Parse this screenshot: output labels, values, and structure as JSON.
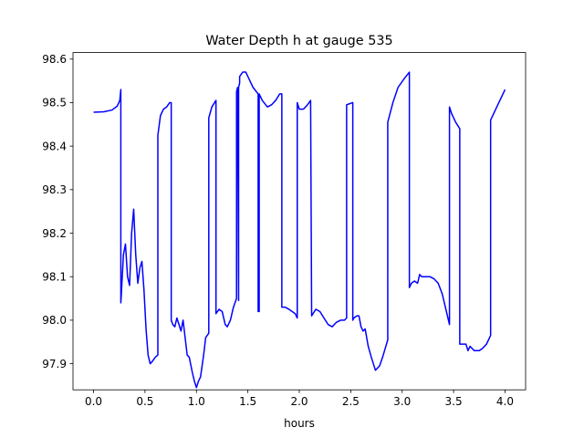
{
  "chart_data": {
    "type": "line",
    "title": "Water Depth h at gauge 535",
    "xlabel": "hours",
    "ylabel": "",
    "xlim": [
      -0.2,
      4.2
    ],
    "ylim": [
      97.84,
      98.615
    ],
    "x_ticks": [
      0.0,
      0.5,
      1.0,
      1.5,
      2.0,
      2.5,
      3.0,
      3.5,
      4.0
    ],
    "x_tick_labels": [
      "0.0",
      "0.5",
      "1.0",
      "1.5",
      "2.0",
      "2.5",
      "3.0",
      "3.5",
      "4.0"
    ],
    "y_ticks": [
      97.9,
      98.0,
      98.1,
      98.2,
      98.3,
      98.4,
      98.5,
      98.6
    ],
    "y_tick_labels": [
      "97.9",
      "98.0",
      "98.1",
      "98.2",
      "98.3",
      "98.4",
      "98.5",
      "98.6"
    ],
    "grid": false,
    "series": [
      {
        "color": "#0000ff",
        "x": [
          0.0,
          0.1,
          0.18,
          0.23,
          0.255,
          0.265,
          0.265,
          0.27,
          0.29,
          0.31,
          0.33,
          0.35,
          0.37,
          0.39,
          0.41,
          0.43,
          0.45,
          0.47,
          0.49,
          0.51,
          0.53,
          0.55,
          0.57,
          0.6,
          0.625,
          0.625,
          0.65,
          0.68,
          0.71,
          0.74,
          0.755,
          0.755,
          0.77,
          0.79,
          0.81,
          0.83,
          0.85,
          0.87,
          0.89,
          0.91,
          0.93,
          0.96,
          0.98,
          1.0,
          1.02,
          1.04,
          1.07,
          1.09,
          1.12,
          1.12,
          1.15,
          1.19,
          1.19,
          1.22,
          1.25,
          1.28,
          1.3,
          1.33,
          1.36,
          1.39,
          1.39,
          1.4,
          1.41,
          1.41,
          1.42,
          1.42,
          1.45,
          1.48,
          1.51,
          1.55,
          1.6,
          1.6,
          1.61,
          1.61,
          1.64,
          1.69,
          1.73,
          1.77,
          1.81,
          1.83,
          1.83,
          1.86,
          1.9,
          1.93,
          1.96,
          1.98,
          1.98,
          2.0,
          2.04,
          2.08,
          2.11,
          2.11,
          2.12,
          2.16,
          2.2,
          2.24,
          2.28,
          2.32,
          2.36,
          2.4,
          2.44,
          2.46,
          2.46,
          2.52,
          2.52,
          2.53,
          2.56,
          2.58,
          2.6,
          2.62,
          2.64,
          2.67,
          2.7,
          2.74,
          2.78,
          2.81,
          2.86,
          2.86,
          2.91,
          2.96,
          3.02,
          3.07,
          3.07,
          3.09,
          3.12,
          3.15,
          3.17,
          3.19,
          3.23,
          3.27,
          3.31,
          3.35,
          3.39,
          3.43,
          3.46,
          3.46,
          3.48,
          3.52,
          3.56,
          3.56,
          3.62,
          3.64,
          3.66,
          3.68,
          3.7,
          3.72,
          3.75,
          3.78,
          3.82,
          3.86,
          3.86,
          3.92,
          3.97,
          4.0
        ],
        "y": [
          98.478,
          98.479,
          98.483,
          98.492,
          98.505,
          98.53,
          98.04,
          98.06,
          98.15,
          98.175,
          98.1,
          98.08,
          98.2,
          98.255,
          98.15,
          98.085,
          98.12,
          98.135,
          98.07,
          97.98,
          97.92,
          97.9,
          97.905,
          97.915,
          97.92,
          98.425,
          98.47,
          98.485,
          98.49,
          98.5,
          98.5,
          98.0,
          97.99,
          97.985,
          98.005,
          97.99,
          97.975,
          98.0,
          97.96,
          97.92,
          97.915,
          97.88,
          97.86,
          97.845,
          97.86,
          97.87,
          97.92,
          97.96,
          97.97,
          98.465,
          98.49,
          98.505,
          98.015,
          98.025,
          98.02,
          97.99,
          97.985,
          98.0,
          98.03,
          98.05,
          98.525,
          98.535,
          98.045,
          98.535,
          98.545,
          98.56,
          98.57,
          98.57,
          98.555,
          98.535,
          98.52,
          98.02,
          98.02,
          98.52,
          98.505,
          98.49,
          98.495,
          98.505,
          98.52,
          98.52,
          98.03,
          98.03,
          98.025,
          98.02,
          98.015,
          98.005,
          98.5,
          98.485,
          98.485,
          98.495,
          98.505,
          98.505,
          98.01,
          98.025,
          98.02,
          98.005,
          97.99,
          97.985,
          97.995,
          98.0,
          98.0,
          98.005,
          98.495,
          98.5,
          98.0,
          98.005,
          98.01,
          98.01,
          97.985,
          97.975,
          97.98,
          97.94,
          97.915,
          97.885,
          97.895,
          97.915,
          97.955,
          98.455,
          98.5,
          98.535,
          98.555,
          98.57,
          98.075,
          98.085,
          98.09,
          98.085,
          98.105,
          98.1,
          98.1,
          98.1,
          98.095,
          98.085,
          98.06,
          98.02,
          97.99,
          98.49,
          98.475,
          98.455,
          98.44,
          97.945,
          97.945,
          97.93,
          97.94,
          97.935,
          97.93,
          97.93,
          97.93,
          97.935,
          97.945,
          97.965,
          98.46,
          98.49,
          98.515,
          98.53
        ]
      }
    ]
  }
}
